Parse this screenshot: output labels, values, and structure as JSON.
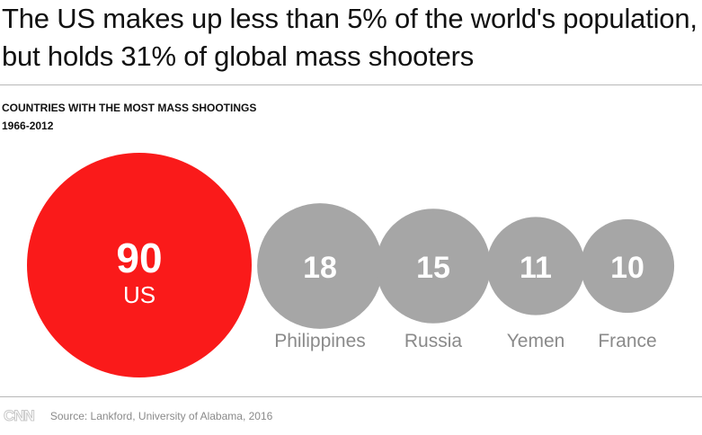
{
  "headline": "The US makes up less than 5% of the world's population, but holds 31% of global mass shooters",
  "subtitle": {
    "line1": "COUNTRIES WITH THE MOST MASS SHOOTINGS",
    "line2": "1966-2012"
  },
  "chart_data": {
    "type": "bubble",
    "title": "COUNTRIES WITH THE MOST MASS SHOOTINGS",
    "subtitle": "1966-2012",
    "categories": [
      "US",
      "Philippines",
      "Russia",
      "Yemen",
      "France"
    ],
    "values": [
      90,
      18,
      15,
      11,
      10
    ],
    "colors": [
      "#fa1a1a",
      "#a6a6a6",
      "#a6a6a6",
      "#a6a6a6",
      "#a6a6a6"
    ],
    "highlight": "US"
  },
  "footer": {
    "logo": "CNN",
    "source": "Source: Lankford, University of Alabama, 2016"
  }
}
